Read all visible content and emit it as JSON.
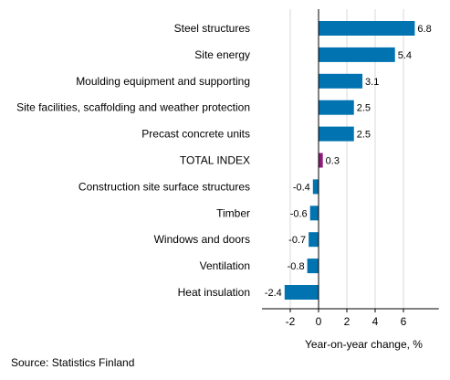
{
  "chart_data": {
    "type": "bar",
    "orientation": "horizontal",
    "categories": [
      "Steel structures",
      "Site energy",
      "Moulding equipment and supporting",
      "Site facilities, scaffolding and weather protection",
      "Precast concrete units",
      "TOTAL INDEX",
      "Construction site surface structures",
      "Timber",
      "Windows and doors",
      "Ventilation",
      "Heat insulation"
    ],
    "values": [
      6.8,
      5.4,
      3.1,
      2.5,
      2.5,
      0.3,
      -0.4,
      -0.6,
      -0.7,
      -0.8,
      -2.4
    ],
    "value_labels": [
      "6.8",
      "5.4",
      "3.1",
      "2.5",
      "2.5",
      "0.3",
      "-0.4",
      "-0.6",
      "-0.7",
      "-0.8",
      "-2.4"
    ],
    "xlabel": "Year-on-year change, %",
    "ylabel": "",
    "xlim": [
      -4,
      8.5
    ],
    "xticks": [
      -2,
      0,
      2,
      4,
      6
    ],
    "xtick_labels": [
      "-2",
      "0",
      "2",
      "4",
      "6"
    ],
    "grid": "vertical",
    "colors": {
      "default_bar": "#0073b0",
      "highlight_bar": "#8c1b7a",
      "gridline": "#d9d9d9",
      "axis": "#000000"
    },
    "highlight_category": "TOTAL INDEX"
  },
  "source": "Source: Statistics Finland"
}
